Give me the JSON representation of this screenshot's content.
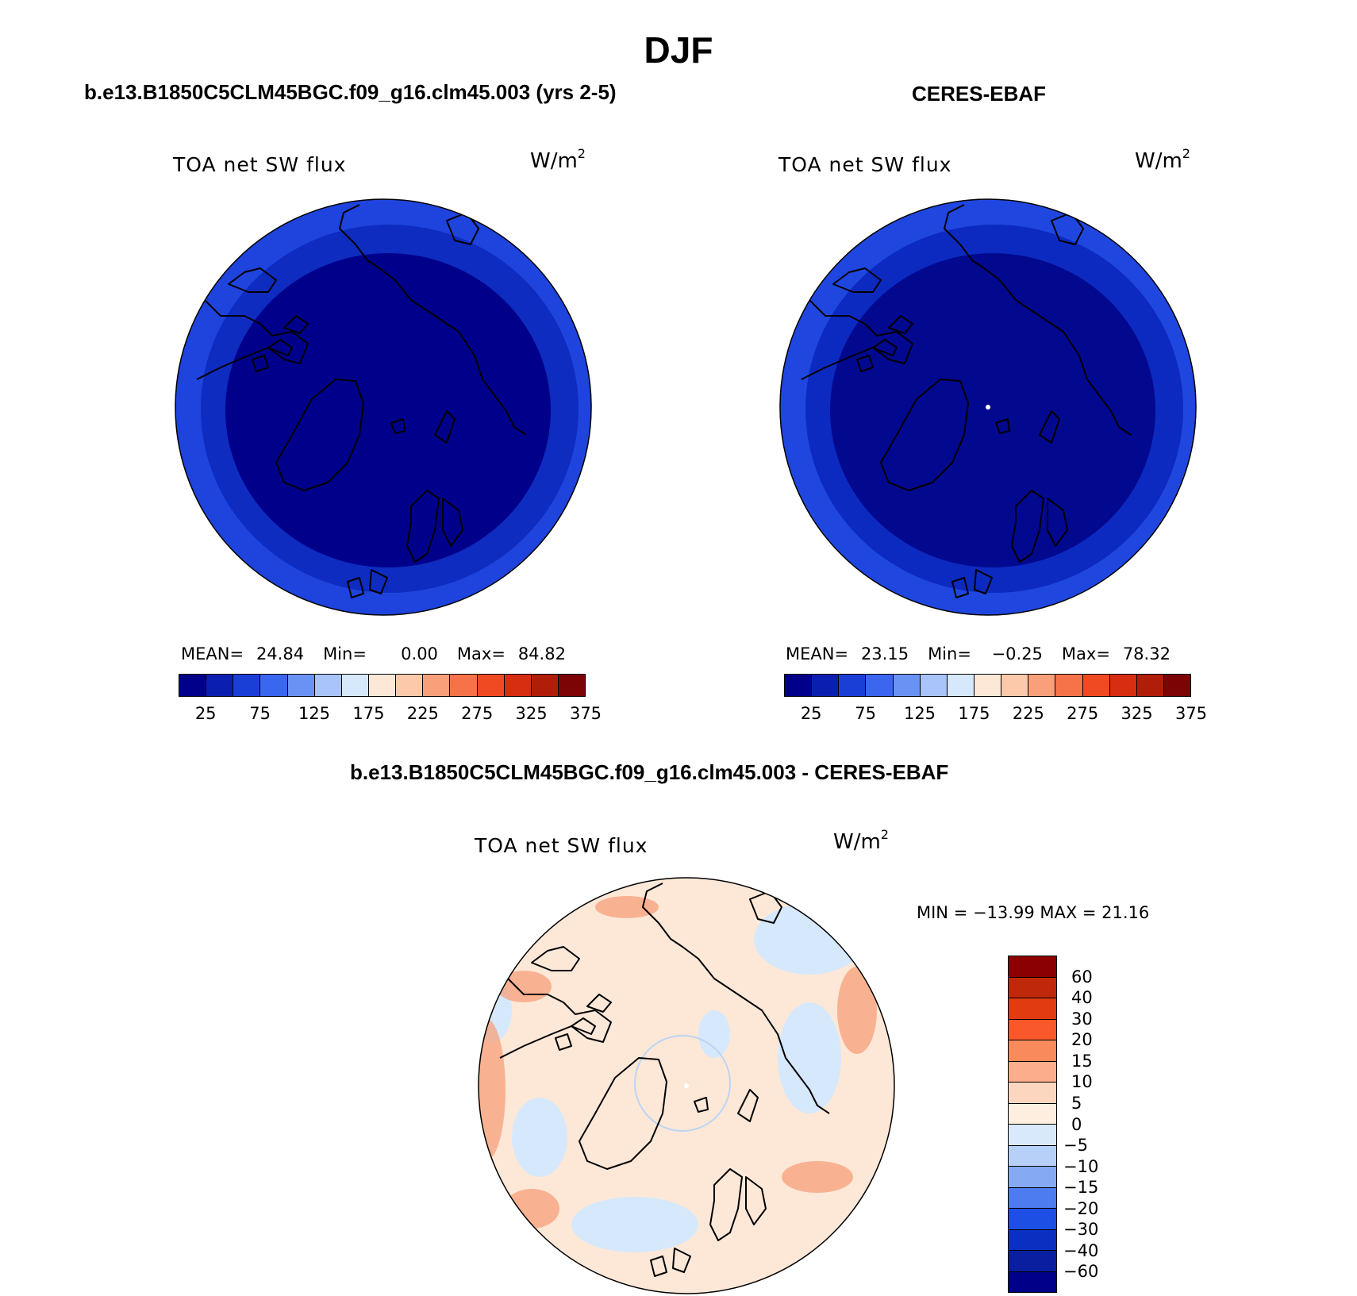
{
  "title": "DJF",
  "panels": [
    {
      "title": "b.e13.B1850C5CLM45BGC.f09_g16.clm45.003 (yrs 2-5)",
      "variable": "TOA net SW flux",
      "units": "W/m",
      "units_exp": "2",
      "stats": {
        "mean_label": "MEAN=",
        "mean": "24.84",
        "min_label": "Min=",
        "min": "0.00",
        "max_label": "Max=",
        "max": "84.82"
      }
    },
    {
      "title": "CERES-EBAF",
      "variable": "TOA net SW flux",
      "units": "W/m",
      "units_exp": "2",
      "stats": {
        "mean_label": "MEAN=",
        "mean": "23.15",
        "min_label": "Min=",
        "min": "−0.25",
        "max_label": "Max=",
        "max": "78.32"
      }
    },
    {
      "title": "b.e13.B1850C5CLM45BGC.f09_g16.clm45.003 - CERES-EBAF",
      "variable": "TOA net SW flux",
      "units": "W/m",
      "units_exp": "2",
      "stats": {
        "minmax": "MIN = −13.99 MAX =  21.16"
      }
    }
  ],
  "colorbar_abs": {
    "ticks": [
      "25",
      "75",
      "125",
      "175",
      "225",
      "275",
      "325",
      "375"
    ],
    "colors": [
      "#00008b",
      "#0a1fb0",
      "#1a3fd6",
      "#3a66f0",
      "#6a92f5",
      "#a8c4fa",
      "#d6e8fc",
      "#fde8d8",
      "#fcc9aa",
      "#f9a07a",
      "#f6734a",
      "#f04a22",
      "#d72d10",
      "#b01d08",
      "#7d0404"
    ]
  },
  "colorbar_diff": {
    "ticks": [
      "60",
      "40",
      "30",
      "20",
      "15",
      "10",
      "5",
      "0",
      "−5",
      "−10",
      "−15",
      "−20",
      "−30",
      "−40",
      "−60"
    ],
    "colors": [
      "#8b0000",
      "#c0280a",
      "#e03c10",
      "#f8582a",
      "#f98a5c",
      "#fcae8c",
      "#fdd6bf",
      "#fdeee0",
      "#d8e9fb",
      "#b7d0f8",
      "#85aaf3",
      "#4c7cf0",
      "#1e4fe4",
      "#0b2fc0",
      "#0a1fa0",
      "#000088"
    ]
  },
  "map_colors": {
    "model_outer": "#1e44dd",
    "model_mid": "#0e2cbf",
    "model_inner": "#00008b",
    "obs_outer": "#1f47e0",
    "obs_mid": "#0c2ac0",
    "obs_inner": "#02098f",
    "diff_base": "#fde8d8",
    "diff_blue": "#d6e8fc",
    "diff_red": "#f7a07a"
  },
  "chart_data": [
    {
      "type": "heatmap",
      "title": "b.e13.B1850C5CLM45BGC.f09_g16.clm45.003 (yrs 2-5)",
      "field": "TOA net SW flux",
      "units": "W/m2",
      "projection": "north polar stereographic",
      "mean": 24.84,
      "min": 0.0,
      "max": 84.82,
      "levels": [
        25,
        50,
        75,
        100,
        125,
        150,
        175,
        200,
        225,
        250,
        275,
        300,
        325,
        350,
        375
      ]
    },
    {
      "type": "heatmap",
      "title": "CERES-EBAF",
      "field": "TOA net SW flux",
      "units": "W/m2",
      "projection": "north polar stereographic",
      "mean": 23.15,
      "min": -0.25,
      "max": 78.32,
      "levels": [
        25,
        50,
        75,
        100,
        125,
        150,
        175,
        200,
        225,
        250,
        275,
        300,
        325,
        350,
        375
      ]
    },
    {
      "type": "heatmap",
      "title": "b.e13.B1850C5CLM45BGC.f09_g16.clm45.003 - CERES-EBAF",
      "field": "TOA net SW flux",
      "units": "W/m2",
      "projection": "north polar stereographic",
      "min": -13.99,
      "max": 21.16,
      "levels": [
        -60,
        -40,
        -30,
        -20,
        -15,
        -10,
        -5,
        0,
        5,
        10,
        15,
        20,
        30,
        40,
        60
      ]
    }
  ]
}
